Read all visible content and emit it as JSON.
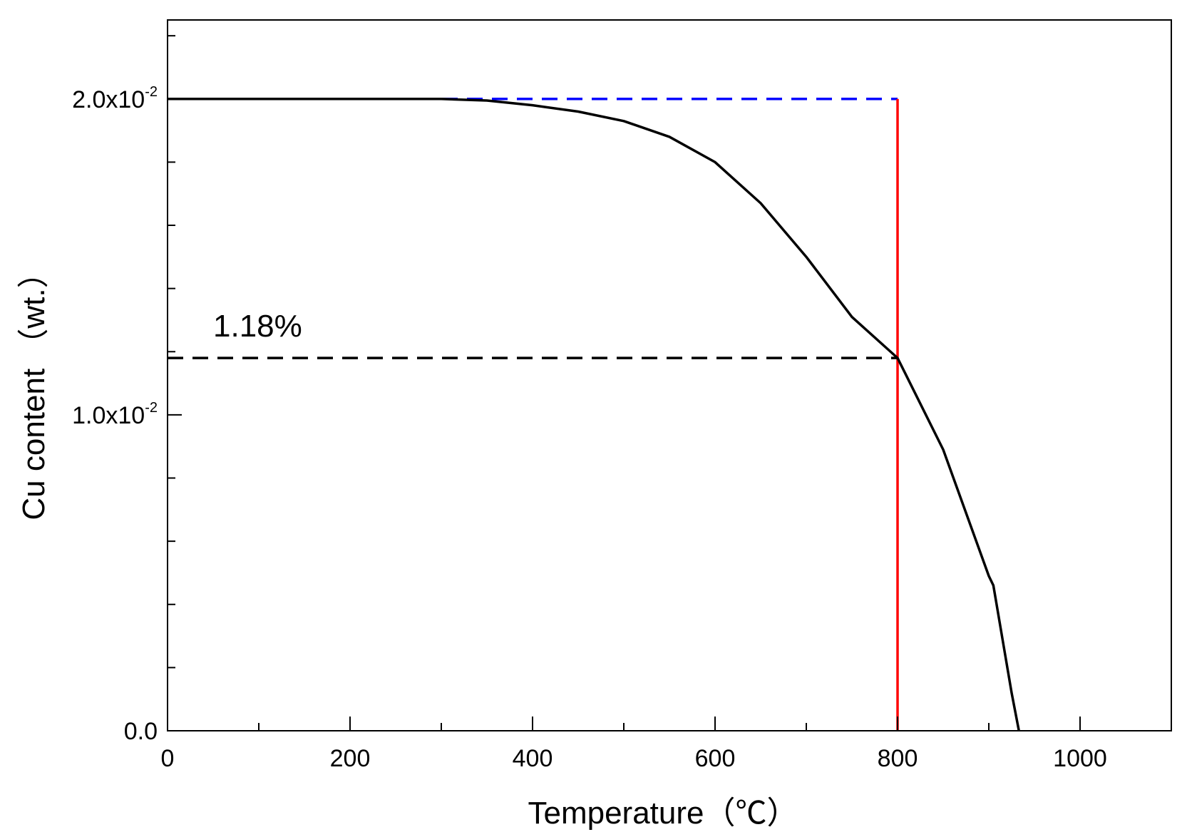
{
  "chart_data": {
    "type": "line",
    "xlabel": "Temperature（℃）",
    "ylabel": "Cu content （wt.）",
    "xlim": [
      0,
      1100
    ],
    "ylim": [
      0,
      0.0225
    ],
    "x_ticks": [
      {
        "value": 0,
        "label": "0"
      },
      {
        "value": 200,
        "label": "200"
      },
      {
        "value": 400,
        "label": "400"
      },
      {
        "value": 600,
        "label": "600"
      },
      {
        "value": 800,
        "label": "800"
      },
      {
        "value": 1000,
        "label": "1000"
      }
    ],
    "y_ticks": [
      {
        "value": 0,
        "mantissa": "0.0",
        "exp": ""
      },
      {
        "value": 0.01,
        "mantissa": "1.0x10",
        "exp": "-2"
      },
      {
        "value": 0.02,
        "mantissa": "2.0x10",
        "exp": "-2"
      }
    ],
    "grid": false,
    "series": [
      {
        "color": "#000000",
        "style": "solid",
        "x": [
          0,
          100,
          200,
          300,
          350,
          400,
          450,
          500,
          550,
          600,
          650,
          700,
          750,
          800,
          850,
          900,
          905,
          915,
          925,
          933
        ],
        "y": [
          0.02,
          0.02,
          0.02,
          0.02,
          0.01995,
          0.0198,
          0.0196,
          0.0193,
          0.0188,
          0.018,
          0.0167,
          0.015,
          0.0131,
          0.0118,
          0.0089,
          0.0049,
          0.0046,
          0.0029,
          0.0012,
          0.0
        ]
      }
    ],
    "reference_lines": [
      {
        "color": "#0000ff",
        "style": "dashed",
        "x": [
          0,
          800
        ],
        "y": [
          0.02,
          0.02
        ]
      },
      {
        "color": "#ff0000",
        "style": "solid",
        "x": [
          800,
          800
        ],
        "y": [
          0,
          0.02
        ]
      },
      {
        "color": "#000000",
        "style": "dashed",
        "x": [
          0,
          800
        ],
        "y": [
          0.0118,
          0.0118
        ]
      }
    ],
    "annotations": [
      {
        "text": "1.18%",
        "x": 50,
        "y": 0.0118
      }
    ]
  }
}
